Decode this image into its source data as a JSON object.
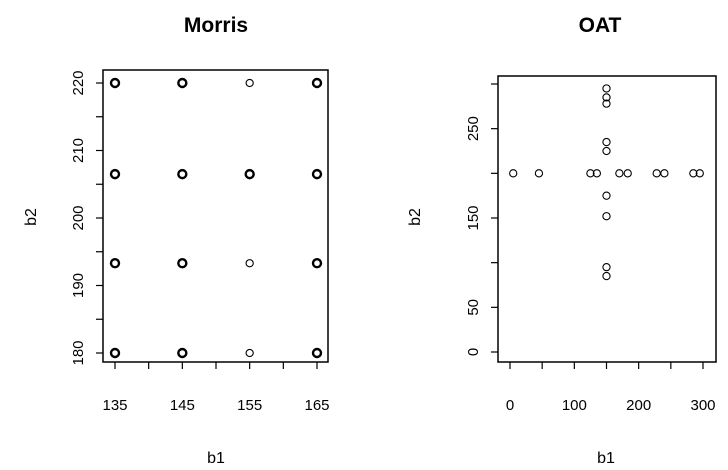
{
  "chart_data": [
    {
      "type": "scatter",
      "title": "Morris",
      "xlabel": "b1",
      "ylabel": "b2",
      "xlim": [
        135,
        165
      ],
      "ylim": [
        180,
        220
      ],
      "xticks": [
        135,
        145,
        155,
        165
      ],
      "yticks": [
        180,
        190,
        200,
        210,
        220
      ],
      "grid": false,
      "points": [
        {
          "x": 135,
          "y": 220,
          "bold": true
        },
        {
          "x": 145,
          "y": 220,
          "bold": true
        },
        {
          "x": 155,
          "y": 220,
          "bold": false
        },
        {
          "x": 165,
          "y": 220,
          "bold": true
        },
        {
          "x": 135,
          "y": 206.5,
          "bold": true
        },
        {
          "x": 145,
          "y": 206.5,
          "bold": true
        },
        {
          "x": 155,
          "y": 206.5,
          "bold": true
        },
        {
          "x": 165,
          "y": 206.5,
          "bold": true
        },
        {
          "x": 135,
          "y": 193.3,
          "bold": true
        },
        {
          "x": 145,
          "y": 193.3,
          "bold": true
        },
        {
          "x": 155,
          "y": 193.3,
          "bold": false
        },
        {
          "x": 165,
          "y": 193.3,
          "bold": true
        },
        {
          "x": 135,
          "y": 180,
          "bold": true
        },
        {
          "x": 145,
          "y": 180,
          "bold": true
        },
        {
          "x": 155,
          "y": 180,
          "bold": false
        },
        {
          "x": 165,
          "y": 180,
          "bold": true
        }
      ]
    },
    {
      "type": "scatter",
      "title": "OAT",
      "xlabel": "b1",
      "ylabel": "b2",
      "xlim": [
        0,
        300
      ],
      "ylim": [
        0,
        300
      ],
      "xticks": [
        0,
        100,
        200,
        300
      ],
      "yticks": [
        0,
        50,
        150,
        250
      ],
      "grid": false,
      "points": [
        {
          "x": 5,
          "y": 200
        },
        {
          "x": 45,
          "y": 200
        },
        {
          "x": 125,
          "y": 200
        },
        {
          "x": 135,
          "y": 200
        },
        {
          "x": 170,
          "y": 200
        },
        {
          "x": 183,
          "y": 200
        },
        {
          "x": 228,
          "y": 200
        },
        {
          "x": 240,
          "y": 200
        },
        {
          "x": 285,
          "y": 200
        },
        {
          "x": 295,
          "y": 200
        },
        {
          "x": 150,
          "y": 295
        },
        {
          "x": 150,
          "y": 285
        },
        {
          "x": 150,
          "y": 278
        },
        {
          "x": 150,
          "y": 235
        },
        {
          "x": 150,
          "y": 225
        },
        {
          "x": 150,
          "y": 175
        },
        {
          "x": 150,
          "y": 152
        },
        {
          "x": 150,
          "y": 95
        },
        {
          "x": 150,
          "y": 85
        }
      ]
    }
  ]
}
